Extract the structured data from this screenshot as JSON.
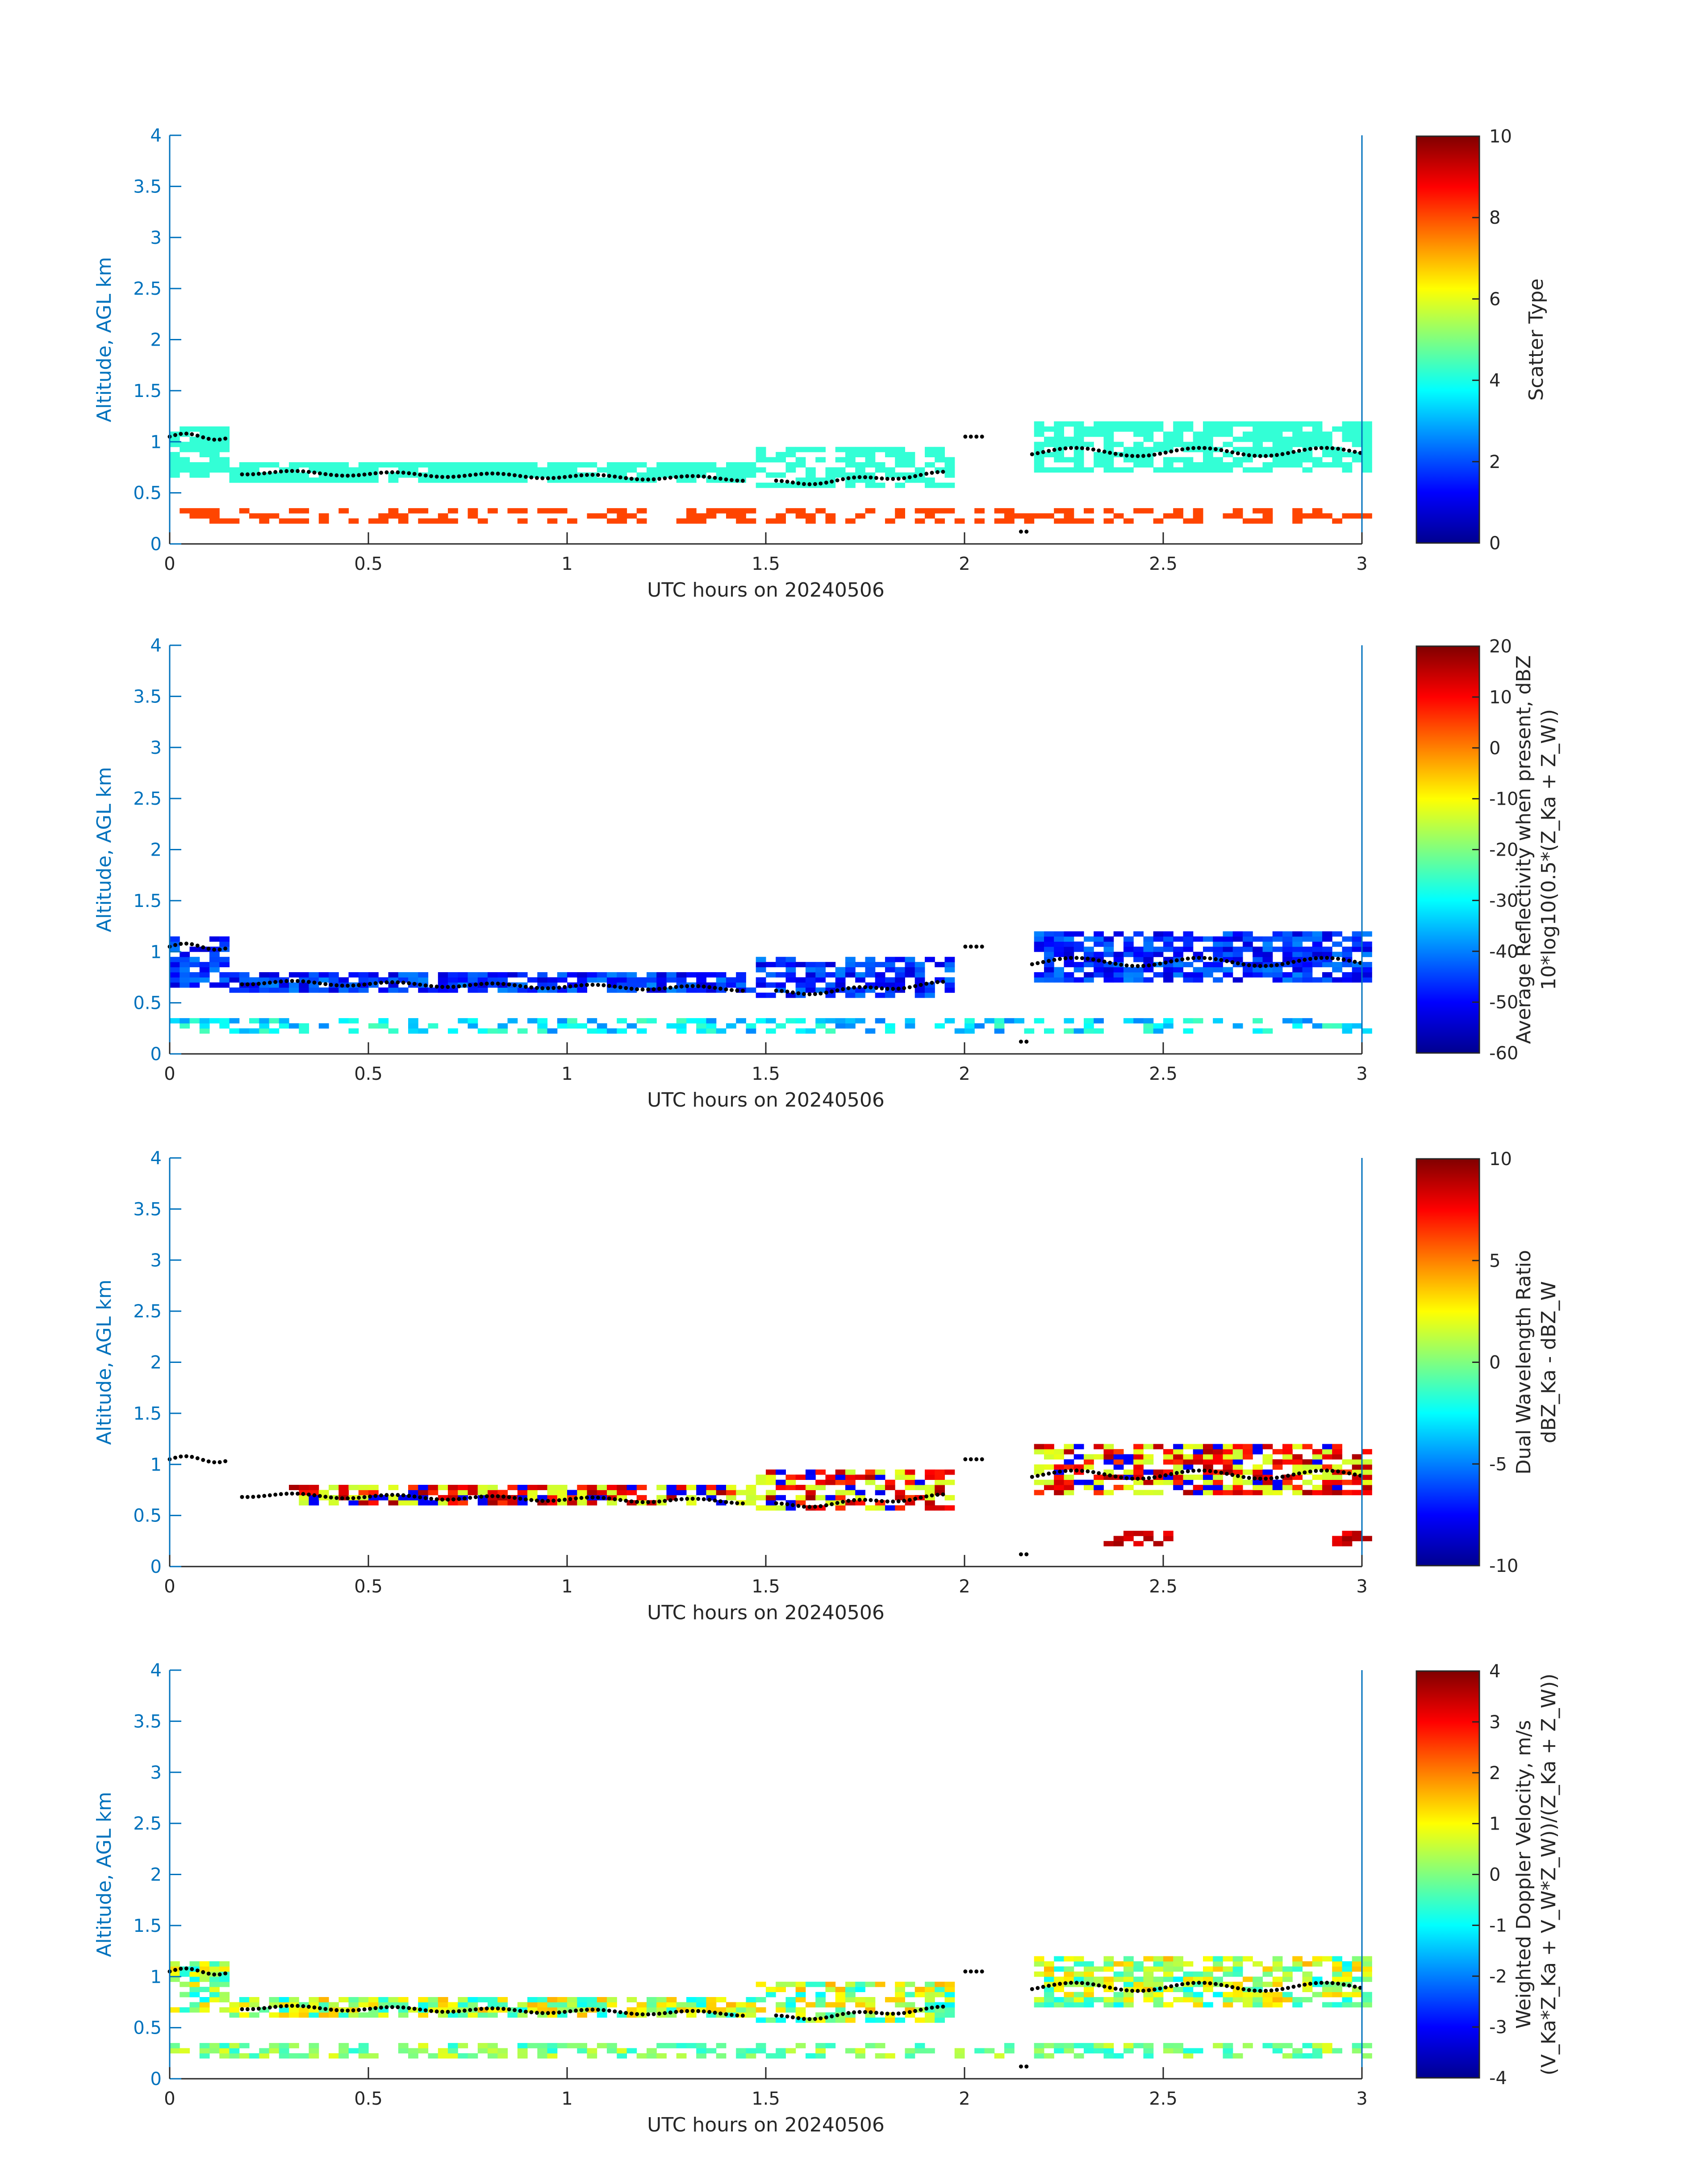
{
  "colors": {
    "axis_blue": "#0072BD",
    "text_dark": "#262626",
    "scatter_cyan": "#33FFD6",
    "scatter_orange": "#FF4500",
    "marker": "#000000"
  },
  "colormap": "jet",
  "chart_data": [
    {
      "type": "heatmap",
      "title": "",
      "xlabel": "UTC hours on 20240506",
      "ylabel": "Altitude, AGL km",
      "xlim": [
        0,
        3
      ],
      "ylim": [
        0,
        4
      ],
      "x_ticks": [
        "0",
        "0.5",
        "1",
        "1.5",
        "2",
        "2.5",
        "3"
      ],
      "y_ticks": [
        "0",
        "0.5",
        "1",
        "1.5",
        "2",
        "2.5",
        "3",
        "3.5",
        "4"
      ],
      "colorbar": {
        "label_lines": [
          "Scatter Type"
        ],
        "range": [
          0,
          10
        ],
        "ticks": [
          "0",
          "2",
          "4",
          "6",
          "8",
          "10"
        ]
      },
      "grid": false
    },
    {
      "type": "heatmap",
      "title": "",
      "xlabel": "UTC hours on 20240506",
      "ylabel": "Altitude, AGL km",
      "xlim": [
        0,
        3
      ],
      "ylim": [
        0,
        4
      ],
      "x_ticks": [
        "0",
        "0.5",
        "1",
        "1.5",
        "2",
        "2.5",
        "3"
      ],
      "y_ticks": [
        "0",
        "0.5",
        "1",
        "1.5",
        "2",
        "2.5",
        "3",
        "3.5",
        "4"
      ],
      "colorbar": {
        "label_lines": [
          "Average Reflectivity when present, dBZ",
          "10*log10(0.5*(Z_Ka + Z_W))"
        ],
        "range": [
          -60,
          20
        ],
        "ticks": [
          "-60",
          "-50",
          "-40",
          "-30",
          "-20",
          "-10",
          "0",
          "10",
          "20"
        ]
      },
      "grid": false
    },
    {
      "type": "heatmap",
      "title": "",
      "xlabel": "UTC hours on 20240506",
      "ylabel": "Altitude, AGL km",
      "xlim": [
        0,
        3
      ],
      "ylim": [
        0,
        4
      ],
      "x_ticks": [
        "0",
        "0.5",
        "1",
        "1.5",
        "2",
        "2.5",
        "3"
      ],
      "y_ticks": [
        "0",
        "0.5",
        "1",
        "1.5",
        "2",
        "2.5",
        "3",
        "3.5",
        "4"
      ],
      "colorbar": {
        "label_lines": [
          "Dual Wavelength Ratio",
          "dBZ_Ka - dBZ_W"
        ],
        "range": [
          -10,
          10
        ],
        "ticks": [
          "-10",
          "-5",
          "0",
          "5",
          "10"
        ]
      },
      "grid": false
    },
    {
      "type": "heatmap",
      "title": "",
      "xlabel": "UTC hours on 20240506",
      "ylabel": "Altitude, AGL km",
      "xlim": [
        0,
        3
      ],
      "ylim": [
        0,
        4
      ],
      "x_ticks": [
        "0",
        "0.5",
        "1",
        "1.5",
        "2",
        "2.5",
        "3"
      ],
      "y_ticks": [
        "0",
        "0.5",
        "1",
        "1.5",
        "2",
        "2.5",
        "3",
        "3.5",
        "4"
      ],
      "colorbar": {
        "label_lines": [
          "Weighted Doppler Velocity, m/s",
          "(V_Ka*Z_Ka + V_W*Z_W))/(Z_Ka + Z_W))"
        ],
        "range": [
          -4,
          4
        ],
        "ticks": [
          "-4",
          "-3",
          "-2",
          "-1",
          "0",
          "1",
          "2",
          "3",
          "4"
        ]
      },
      "grid": false
    }
  ]
}
